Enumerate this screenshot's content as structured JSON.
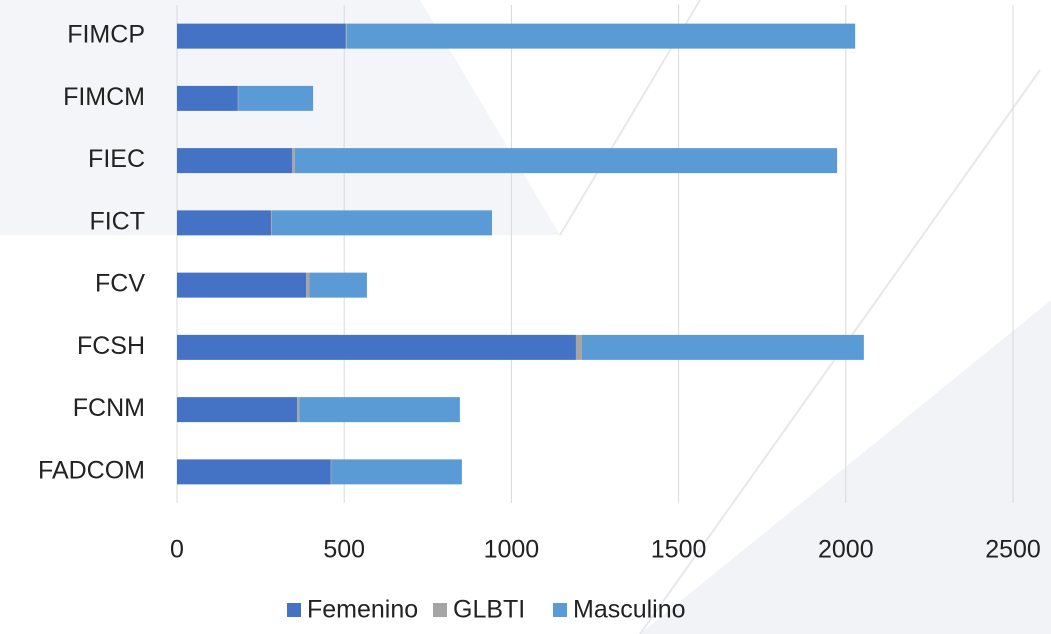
{
  "chart_data": {
    "type": "stacked_barh",
    "categories": [
      "FIMCP",
      "FIMCM",
      "FIEC",
      "FICT",
      "FCV",
      "FCSH",
      "FCNM",
      "FADCOM"
    ],
    "series": [
      {
        "name": "Femenino",
        "color": "#4472c4",
        "values": [
          505,
          182,
          344,
          281,
          386,
          1193,
          359,
          460
        ]
      },
      {
        "name": "GLBTI",
        "color": "#a5a5a5",
        "values": [
          3,
          2,
          8,
          3,
          10,
          18,
          7,
          2
        ]
      },
      {
        "name": "Masculino",
        "color": "#5b9bd5",
        "values": [
          1520,
          223,
          1622,
          658,
          172,
          843,
          480,
          390
        ]
      }
    ],
    "xlim": [
      0,
      2500
    ],
    "xticks": [
      0,
      500,
      1000,
      1500,
      2000,
      2500
    ],
    "grid": true,
    "legend": "bottom"
  }
}
